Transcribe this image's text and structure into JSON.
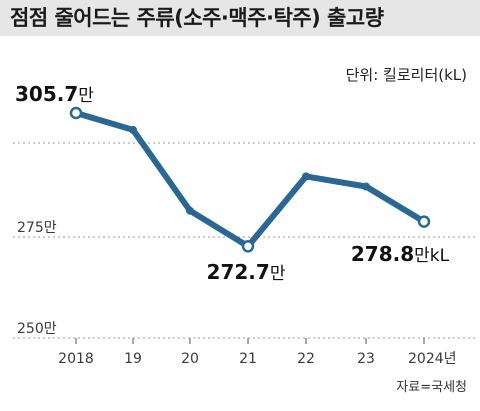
{
  "title": "점점 줄어드는 주류(소주·맥주·탁주) 출고량",
  "unit_label": "단위: 킬로리터(kL)",
  "source": "자료=국세청",
  "colors": {
    "line": "#2b6793",
    "grid": "#9a9a9a",
    "title_bg": "#e6e6e6"
  },
  "chart_data": {
    "type": "line",
    "categories": [
      "2018",
      "19",
      "20",
      "21",
      "22",
      "23",
      "2024년"
    ],
    "values": [
      305.7,
      301.5,
      281.5,
      272.7,
      290.0,
      287.5,
      278.8
    ],
    "unit": "만 kL",
    "y_ticks": [
      {
        "value": 275,
        "label": "275만"
      },
      {
        "value": 250,
        "label": "250만"
      }
    ],
    "ylim": [
      250,
      310
    ],
    "grid": "dashed horizontal",
    "data_labels": [
      {
        "index": 0,
        "value": "305.7",
        "suffix": "만"
      },
      {
        "index": 3,
        "value": "272.7",
        "suffix": "만"
      },
      {
        "index": 6,
        "value": "278.8",
        "suffix": "만kL"
      }
    ]
  }
}
